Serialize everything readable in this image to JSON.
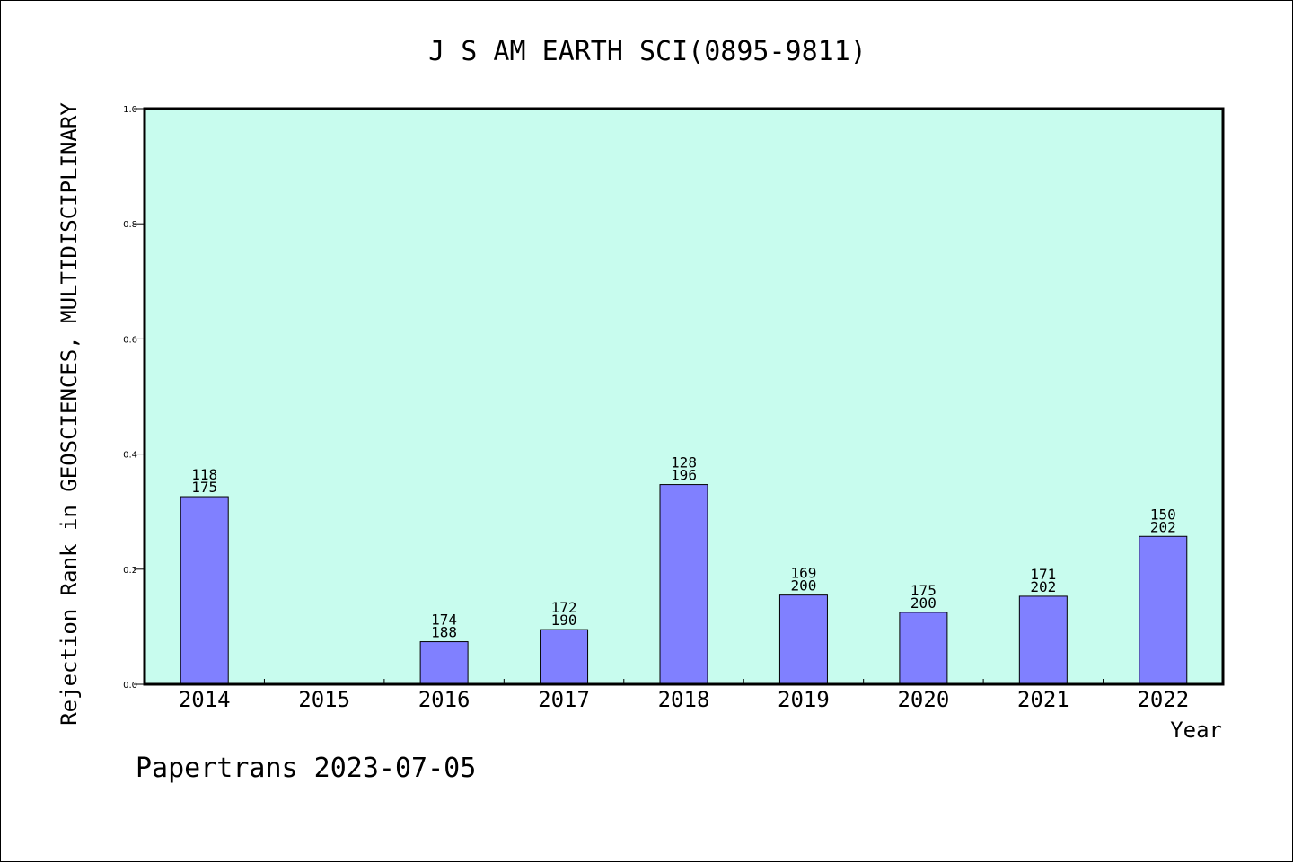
{
  "chart_data": {
    "type": "bar",
    "title": "J S AM EARTH SCI(0895-9811)",
    "xlabel": "Year",
    "ylabel": "Rejection Rank in GEOSCIENCES, MULTIDISCIPLINARY",
    "footer": "Papertrans 2023-07-05",
    "categories": [
      "2014",
      "2015",
      "2016",
      "2017",
      "2018",
      "2019",
      "2020",
      "2021",
      "2022"
    ],
    "values": [
      0.326,
      0,
      0.074,
      0.095,
      0.347,
      0.155,
      0.125,
      0.153,
      0.257
    ],
    "labels_top": [
      "118",
      "",
      "174",
      "172",
      "128",
      "169",
      "175",
      "171",
      "150"
    ],
    "labels_bottom": [
      "175",
      "",
      "188",
      "190",
      "196",
      "200",
      "200",
      "202",
      "202"
    ],
    "ylim": [
      0,
      1.0
    ],
    "yticks": [
      "0.0",
      "0.2",
      "0.4",
      "0.6",
      "0.8",
      "1.0"
    ],
    "colors": {
      "plot_bg": "#c8fcee",
      "bar_fill": "#8080ff",
      "bar_edge": "#000000"
    }
  }
}
